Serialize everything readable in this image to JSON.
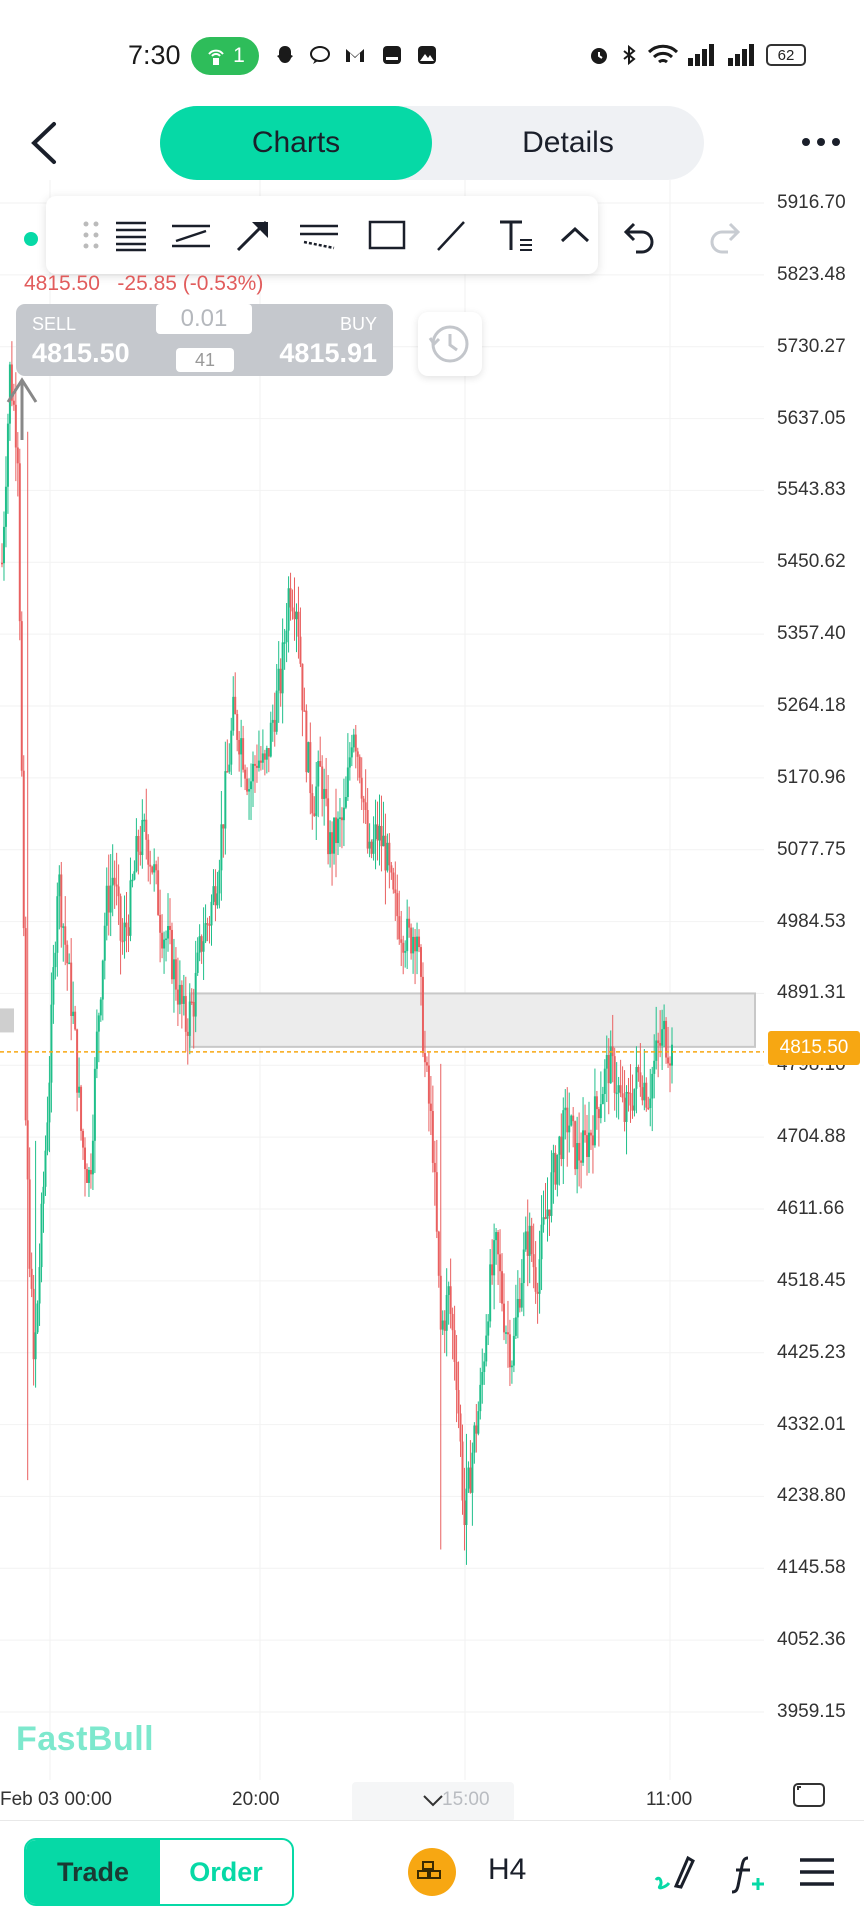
{
  "status_bar": {
    "time": "7:30",
    "hotspot_count": "1",
    "battery": "62",
    "icons": [
      "hotspot-icon",
      "snapchat-icon",
      "chat-icon",
      "gmail-icon",
      "app-icon",
      "gallery-icon",
      "alarm-icon",
      "bluetooth-icon",
      "wifi-icon",
      "signal-icon",
      "signal-icon",
      "battery-icon"
    ]
  },
  "header": {
    "back_icon": "chevron-left-icon",
    "tabs": [
      {
        "label": "Charts",
        "active": true
      },
      {
        "label": "Details",
        "active": false
      }
    ],
    "more_icon": "more-icon"
  },
  "toolbar": {
    "tools": [
      "drag-handle-icon",
      "fib-retracement-icon",
      "parallel-channel-icon",
      "arrow-icon",
      "regression-icon",
      "rectangle-icon",
      "line-icon",
      "text-icon",
      "collapse-icon"
    ],
    "undo_icon": "undo-icon",
    "redo_icon": "redo-icon"
  },
  "quote": {
    "price_change": "4815.50   -25.85 (-0.53%)",
    "sell_label": "SELL",
    "sell_price": "4815.50",
    "buy_label": "BUY",
    "buy_price": "4815.91",
    "lot": "0.01",
    "spread": "41"
  },
  "chart_data": {
    "type": "candlestick",
    "y_ticks": [
      "5916.70",
      "5823.48",
      "5730.27",
      "5637.05",
      "5543.83",
      "5450.62",
      "5357.40",
      "5264.18",
      "5170.96",
      "5077.75",
      "4984.53",
      "4891.31",
      "4798.10",
      "4704.88",
      "4611.66",
      "4518.45",
      "4425.23",
      "4332.01",
      "4238.80",
      "4145.58",
      "4052.36",
      "3959.15"
    ],
    "x_ticks": [
      "Feb 03 00:00",
      "20:00",
      "15:00",
      "11:00"
    ],
    "current_price": "4815.50",
    "colors": {
      "up": "#1fbf8a",
      "down": "#e96060",
      "current_line": "#f7a712"
    },
    "path": [
      5450,
      5700,
      5600,
      4700,
      4400,
      4600,
      4800,
      5050,
      4950,
      4850,
      4700,
      4650,
      4850,
      5000,
      5050,
      4950,
      5000,
      5080,
      5100,
      5050,
      4980,
      4950,
      4900,
      4850,
      4880,
      4960,
      4990,
      5050,
      5150,
      5250,
      5220,
      5160,
      5200,
      5180,
      5250,
      5300,
      5420,
      5400,
      5220,
      5140,
      5180,
      5080,
      5100,
      5120,
      5250,
      5180,
      5060,
      5100,
      5080,
      5010,
      4980,
      4960,
      4980,
      4800,
      4700,
      4450,
      4500,
      4400,
      4200,
      4300,
      4370,
      4500,
      4560,
      4470,
      4420,
      4520,
      4580,
      4520,
      4590,
      4650,
      4700,
      4730,
      4680,
      4690,
      4720,
      4760,
      4800,
      4780,
      4730,
      4760,
      4790,
      4760,
      4810,
      4840,
      4815
    ],
    "extremes": [
      [
        3,
        5620,
        4260
      ],
      [
        4,
        4700,
        4380
      ],
      [
        55,
        4800,
        4170
      ],
      [
        58,
        4320,
        4150
      ]
    ]
  },
  "zone": {
    "high": 4891.31,
    "low": 4822.0
  },
  "watermark": "FastBull",
  "bottom_bar": {
    "trade_label": "Trade",
    "order_label": "Order",
    "symbol_icon": "gold-icon",
    "timeframe": "H4",
    "draw_icon": "draw-icon",
    "indicator_icon": "indicator-icon",
    "menu_icon": "menu-icon"
  }
}
